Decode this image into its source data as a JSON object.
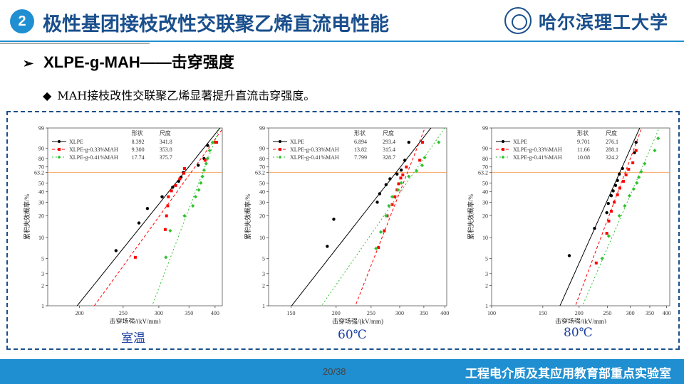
{
  "header": {
    "section_number": "2",
    "title": "极性基团接枝改性交联聚乙烯直流电性能",
    "university": "哈尔滨理工大学"
  },
  "subheading": "XLPE-g-MAH——击穿强度",
  "bullet": "MAH接枝改性交联聚乙烯显著提升直流击穿强度。",
  "legend_header": {
    "shape": "形状",
    "scale": "尺度"
  },
  "footer": {
    "page": "20/38",
    "lab": "工程电介质及其应用教育部重点实验室"
  },
  "colors": {
    "xlpe": "#000000",
    "mah033": "#ff0000",
    "mah041": "#2ec22e",
    "ref_line": "#f4a460",
    "accent": "#1f8fd1"
  },
  "chart_data": [
    {
      "type": "scatter",
      "condition": "室温",
      "xlabel": "击穿场强/(kV/mm)",
      "ylabel": "累积失效概率/%",
      "xlim": [
        170,
        415
      ],
      "x_ticks": [
        200,
        250,
        300,
        350,
        400
      ],
      "y_ticks": [
        1,
        2,
        3,
        5,
        10,
        20,
        30,
        40,
        50,
        63.2,
        70,
        80,
        90,
        99
      ],
      "series": [
        {
          "name": "XLPE",
          "shape": "8.392",
          "scale": "341.8",
          "x": [
            241,
            271,
            283,
            305,
            322,
            332,
            336,
            340,
            367,
            378,
            385
          ],
          "y": [
            6.5,
            16,
            25,
            35,
            45,
            52,
            57,
            63,
            72,
            80,
            92
          ]
        },
        {
          "name": "XLPE-g-0.33%MAH",
          "shape": "9.300",
          "scale": "353.8",
          "x": [
            266,
            310,
            312,
            314,
            315,
            320,
            327,
            334,
            341,
            342,
            380,
            400,
            403
          ],
          "y": [
            5.2,
            13,
            20,
            27,
            35,
            41,
            47,
            55,
            62,
            68,
            78,
            94,
            94
          ]
        },
        {
          "name": "XLPE-g-0.41%MAH",
          "shape": "17.74",
          "scale": "375.7",
          "x": [
            311,
            318,
            342,
            357,
            362,
            368,
            372,
            375,
            378,
            382,
            385,
            389,
            395
          ],
          "y": [
            5.2,
            12.5,
            20,
            27,
            35,
            42,
            50,
            58,
            66,
            74,
            80,
            88,
            94
          ]
        }
      ]
    },
    {
      "type": "scatter",
      "condition": "60℃",
      "xlabel": "击穿场强/(kV/mm)",
      "ylabel": "累积失效概率/%",
      "xlim": [
        130,
        405
      ],
      "x_ticks": [
        150,
        200,
        250,
        300,
        350,
        400
      ],
      "y_ticks": [
        1,
        2,
        3,
        5,
        10,
        20,
        30,
        40,
        50,
        63.2,
        70,
        80,
        90,
        99
      ],
      "series": [
        {
          "name": "XLPE",
          "shape": "6.894",
          "scale": "293.4",
          "x": [
            189,
            197,
            260,
            264,
            275,
            282,
            295,
            303,
            310,
            318
          ],
          "y": [
            7.5,
            18,
            30,
            38,
            48,
            55,
            61,
            66,
            78,
            94
          ]
        },
        {
          "name": "XLPE-g-0.33%MAH",
          "shape": "13.82",
          "scale": "315.4",
          "x": [
            262,
            272,
            277,
            286,
            291,
            295,
            298,
            302,
            306,
            313,
            341,
            347
          ],
          "y": [
            7.2,
            12.5,
            20,
            28,
            35,
            42,
            49,
            56,
            60,
            70,
            78,
            94
          ]
        },
        {
          "name": "XLPE-g-0.41%MAH",
          "shape": "7.799",
          "scale": "328.7",
          "x": [
            258,
            266,
            275,
            280,
            286,
            297,
            303,
            318,
            334,
            346,
            352,
            385
          ],
          "y": [
            7,
            12,
            20,
            27,
            35,
            42,
            50,
            58,
            65,
            72,
            81,
            94
          ]
        }
      ]
    },
    {
      "type": "scatter",
      "condition": "80℃",
      "xlabel": "击穿场强/(kV/mm)",
      "ylabel": "累积失效概率/%",
      "xlim": [
        100,
        410
      ],
      "x_ticks": [
        100,
        150,
        200,
        250,
        300,
        350,
        400
      ],
      "y_ticks": [
        1,
        2,
        3,
        5,
        10,
        20,
        30,
        40,
        50,
        63.2,
        70,
        80,
        90,
        99
      ],
      "series": [
        {
          "name": "XLPE",
          "shape": "9.701",
          "scale": "276.1",
          "x": [
            185,
            226,
            249,
            252,
            258,
            262,
            267,
            271,
            275,
            282,
            310,
            314
          ],
          "y": [
            5.5,
            13.5,
            22,
            29,
            36,
            41,
            47,
            53,
            61,
            68,
            86,
            94
          ]
        },
        {
          "name": "XLPE-g-0.33%MAH",
          "shape": "11.66",
          "scale": "288.1",
          "x": [
            229,
            249,
            253,
            258,
            264,
            271,
            276,
            284,
            290,
            296,
            306,
            314
          ],
          "y": [
            4.3,
            11.5,
            17,
            23,
            30,
            37,
            44,
            52,
            60,
            67,
            75,
            88
          ]
        },
        {
          "name": "XLPE-g-0.41%MAH",
          "shape": "10.08",
          "scale": "324.2",
          "x": [
            240,
            253,
            275,
            287,
            298,
            308,
            316,
            321,
            327,
            336,
            364,
            374
          ],
          "y": [
            5,
            10.5,
            20,
            27,
            36,
            43,
            50,
            57,
            64,
            74,
            88,
            96
          ]
        }
      ]
    }
  ]
}
